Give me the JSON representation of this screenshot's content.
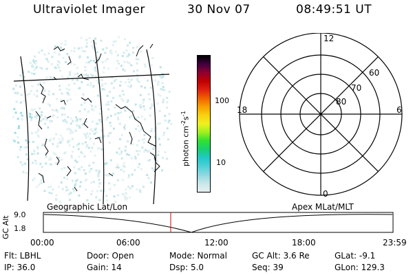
{
  "header": {
    "title": "Ultraviolet Imager",
    "date": "30 Nov 07",
    "time": "08:49:51 UT"
  },
  "colorbar": {
    "unit_main": "photon cm",
    "unit_sup1": "-2",
    "unit_s": "s",
    "unit_sup2": "-1",
    "tick_labels": [
      "100",
      "10"
    ],
    "colors": [
      "#e8f0f0",
      "#c8e6e8",
      "#8fd8e0",
      "#4fd0d8",
      "#20c8c8",
      "#18d070",
      "#30e030",
      "#a0f020",
      "#f0f020",
      "#f8d010",
      "#f8a000",
      "#f06000",
      "#e02010",
      "#c00000",
      "#900030",
      "#400040",
      "#000000"
    ]
  },
  "polar": {
    "labels": [
      "12",
      "60",
      "70",
      "80",
      "18",
      "6",
      "0"
    ]
  },
  "timeline": {
    "left_label": "Geographic Lat/Lon",
    "right_label": "Apex MLat/MLT",
    "axis_title": "GC Alt",
    "y_ticks": [
      "9.0",
      "1.8"
    ],
    "x_ticks": [
      "00:00",
      "06:00",
      "12:00",
      "18:00",
      "23:59"
    ],
    "marker_color": "#d00000"
  },
  "info": {
    "flt": "Flt: LBHL",
    "door": "Door: Open",
    "mode": "Mode: Normal",
    "gcalt": "GC Alt: 3.6 Re",
    "glat": "GLat:  -9.1",
    "ip": "IP: 36.0",
    "gain": "Gain: 14",
    "dsp": "Dsp:    5.0",
    "seq": "Seq: 39",
    "glon": "GLon: 129.3"
  }
}
